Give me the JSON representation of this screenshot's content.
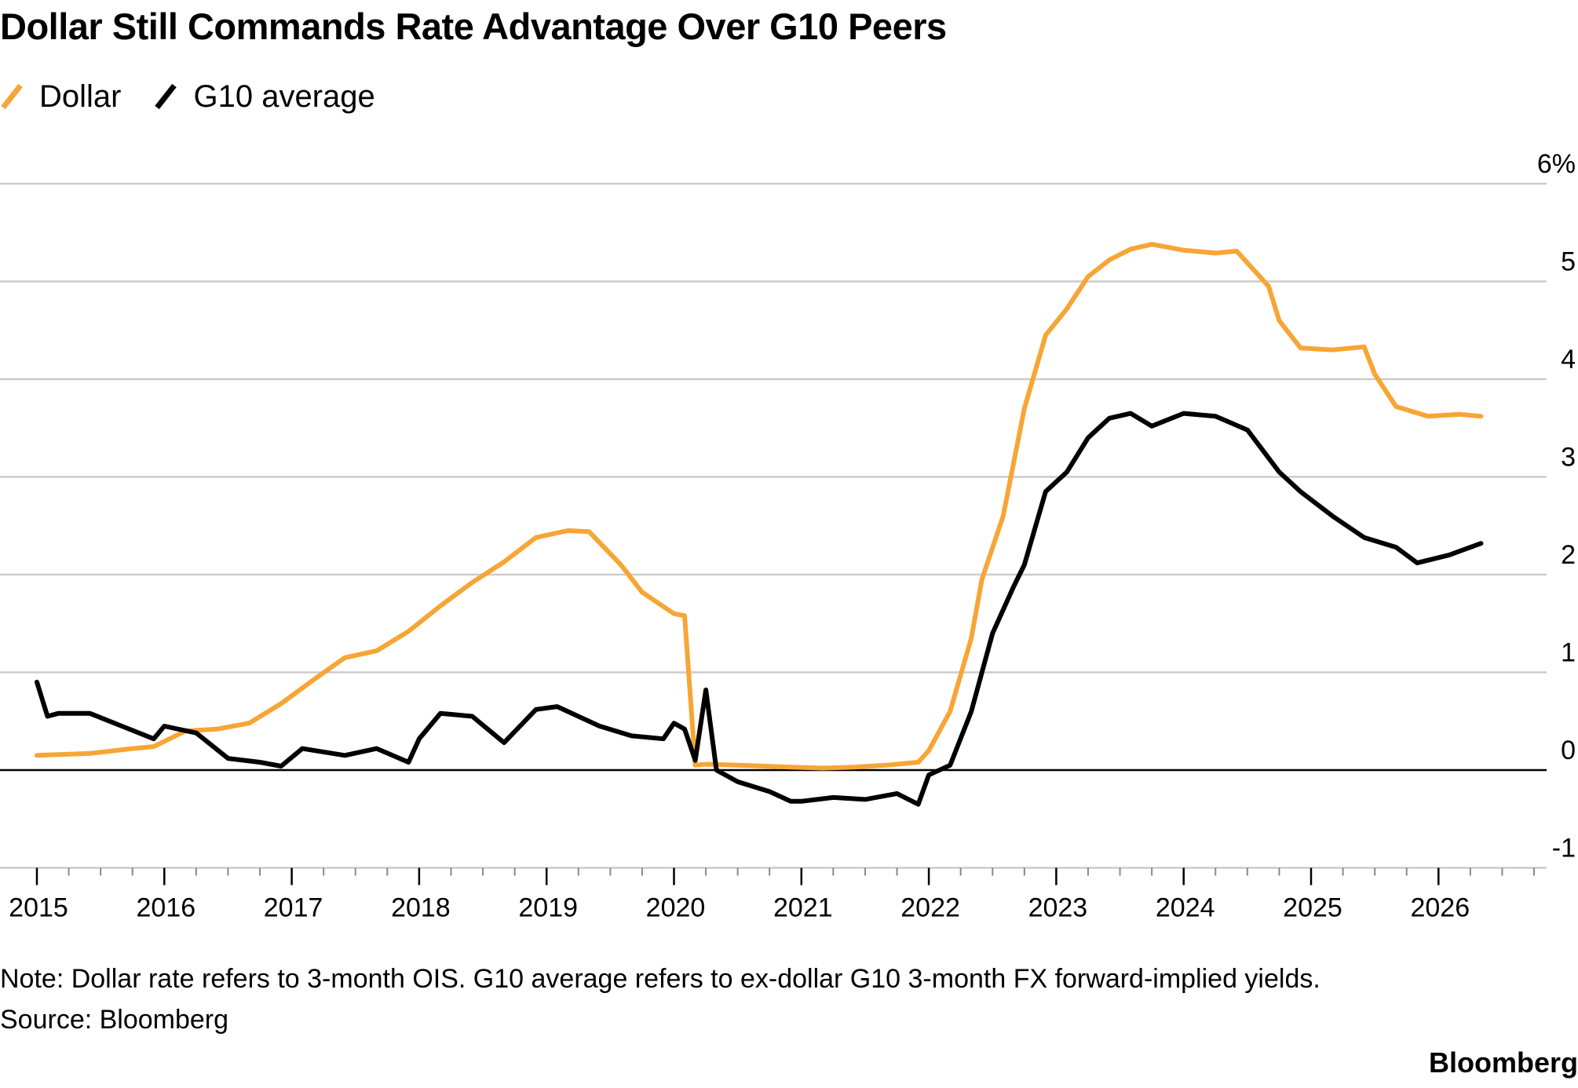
{
  "title": "Dollar Still Commands Rate Advantage Over G10 Peers",
  "note": "Note: Dollar rate refers to 3-month OIS. G10 average refers to ex-dollar G10 3-month FX forward-implied yields.",
  "source": "Source: Bloomberg",
  "brand": "Bloomberg",
  "colors": {
    "dollar": "#f7a535",
    "g10": "#000000",
    "grid": "#cccccc",
    "zero": "#000000"
  },
  "chart_data": {
    "type": "line",
    "title": "Dollar Still Commands Rate Advantage Over G10 Peers",
    "xlabel": "",
    "ylabel": "",
    "x_ticks": [
      "2015",
      "2016",
      "2017",
      "2018",
      "2019",
      "2020",
      "2021",
      "2022",
      "2023",
      "2024",
      "2025",
      "2026"
    ],
    "y_ticks": [
      "6%",
      "5",
      "4",
      "3",
      "2",
      "1",
      "0",
      "-1"
    ],
    "xlim": [
      "2015-01",
      "2026-12"
    ],
    "ylim": [
      -1,
      6
    ],
    "grid": true,
    "legend_position": "top-left",
    "series": [
      {
        "name": "Dollar",
        "color": "#f7a535",
        "x": [
          "2015-01",
          "2015-06",
          "2015-10",
          "2015-12",
          "2016-03",
          "2016-06",
          "2016-09",
          "2016-12",
          "2017-03",
          "2017-06",
          "2017-09",
          "2017-12",
          "2018-03",
          "2018-06",
          "2018-09",
          "2018-12",
          "2019-03",
          "2019-05",
          "2019-08",
          "2019-10",
          "2020-01",
          "2020-02",
          "2020-03",
          "2020-04",
          "2020-07",
          "2020-12",
          "2021-03",
          "2021-06",
          "2021-09",
          "2021-12",
          "2022-01",
          "2022-03",
          "2022-05",
          "2022-06",
          "2022-08",
          "2022-10",
          "2022-12",
          "2023-02",
          "2023-04",
          "2023-06",
          "2023-08",
          "2023-10",
          "2024-01",
          "2024-04",
          "2024-06",
          "2024-09",
          "2024-10",
          "2024-12",
          "2025-03",
          "2025-06",
          "2025-07",
          "2025-09",
          "2025-12",
          "2026-03",
          "2026-05"
        ],
        "values": [
          0.15,
          0.17,
          0.22,
          0.24,
          0.4,
          0.42,
          0.48,
          0.68,
          0.92,
          1.15,
          1.22,
          1.42,
          1.68,
          1.92,
          2.13,
          2.38,
          2.45,
          2.44,
          2.1,
          1.82,
          1.6,
          1.58,
          0.05,
          0.06,
          0.05,
          0.03,
          0.02,
          0.03,
          0.05,
          0.08,
          0.2,
          0.6,
          1.35,
          1.95,
          2.6,
          3.7,
          4.45,
          4.72,
          5.05,
          5.22,
          5.33,
          5.38,
          5.32,
          5.29,
          5.31,
          4.95,
          4.6,
          4.32,
          4.3,
          4.33,
          4.05,
          3.72,
          3.62,
          3.64,
          3.62
        ]
      },
      {
        "name": "G10 average",
        "color": "#000000",
        "x": [
          "2015-01",
          "2015-02",
          "2015-03",
          "2015-06",
          "2015-09",
          "2015-12",
          "2016-01",
          "2016-04",
          "2016-07",
          "2016-10",
          "2016-12",
          "2017-02",
          "2017-06",
          "2017-09",
          "2017-12",
          "2018-01",
          "2018-03",
          "2018-06",
          "2018-09",
          "2018-12",
          "2019-02",
          "2019-06",
          "2019-09",
          "2019-12",
          "2020-01",
          "2020-02",
          "2020-03",
          "2020-04",
          "2020-05",
          "2020-07",
          "2020-10",
          "2020-12",
          "2021-01",
          "2021-04",
          "2021-07",
          "2021-10",
          "2021-12",
          "2022-01",
          "2022-03",
          "2022-05",
          "2022-07",
          "2022-09",
          "2022-10",
          "2022-12",
          "2023-02",
          "2023-04",
          "2023-06",
          "2023-08",
          "2023-10",
          "2024-01",
          "2024-04",
          "2024-07",
          "2024-10",
          "2024-12",
          "2025-03",
          "2025-06",
          "2025-09",
          "2025-11",
          "2026-02",
          "2026-05"
        ],
        "values": [
          0.9,
          0.55,
          0.58,
          0.58,
          0.45,
          0.32,
          0.45,
          0.38,
          0.12,
          0.08,
          0.04,
          0.22,
          0.15,
          0.22,
          0.08,
          0.32,
          0.58,
          0.55,
          0.28,
          0.62,
          0.65,
          0.45,
          0.35,
          0.32,
          0.48,
          0.42,
          0.1,
          0.82,
          0.0,
          -0.12,
          -0.22,
          -0.32,
          -0.32,
          -0.28,
          -0.3,
          -0.24,
          -0.35,
          -0.05,
          0.05,
          0.6,
          1.4,
          1.88,
          2.1,
          2.85,
          3.05,
          3.4,
          3.6,
          3.65,
          3.52,
          3.65,
          3.62,
          3.48,
          3.05,
          2.85,
          2.6,
          2.38,
          2.28,
          2.12,
          2.2,
          2.32
        ]
      }
    ]
  }
}
